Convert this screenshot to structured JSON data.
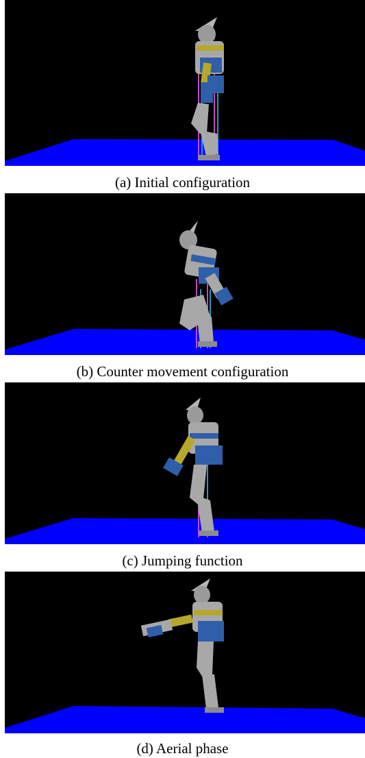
{
  "figures": [
    {
      "caption": "(a) Initial configuration"
    },
    {
      "caption": "(b) Counter movement configuration"
    },
    {
      "caption": "(c) Jumping function"
    },
    {
      "caption": "(d) Aerial phase"
    }
  ],
  "colors": {
    "background": "#000000",
    "floor": "#0000ff",
    "robot_body": "#a8a8a8",
    "robot_blue": "#2f5fa8",
    "robot_accent": "#b5a82a",
    "force_line_a": "#ff66ff",
    "force_line_b": "#33ccff"
  }
}
